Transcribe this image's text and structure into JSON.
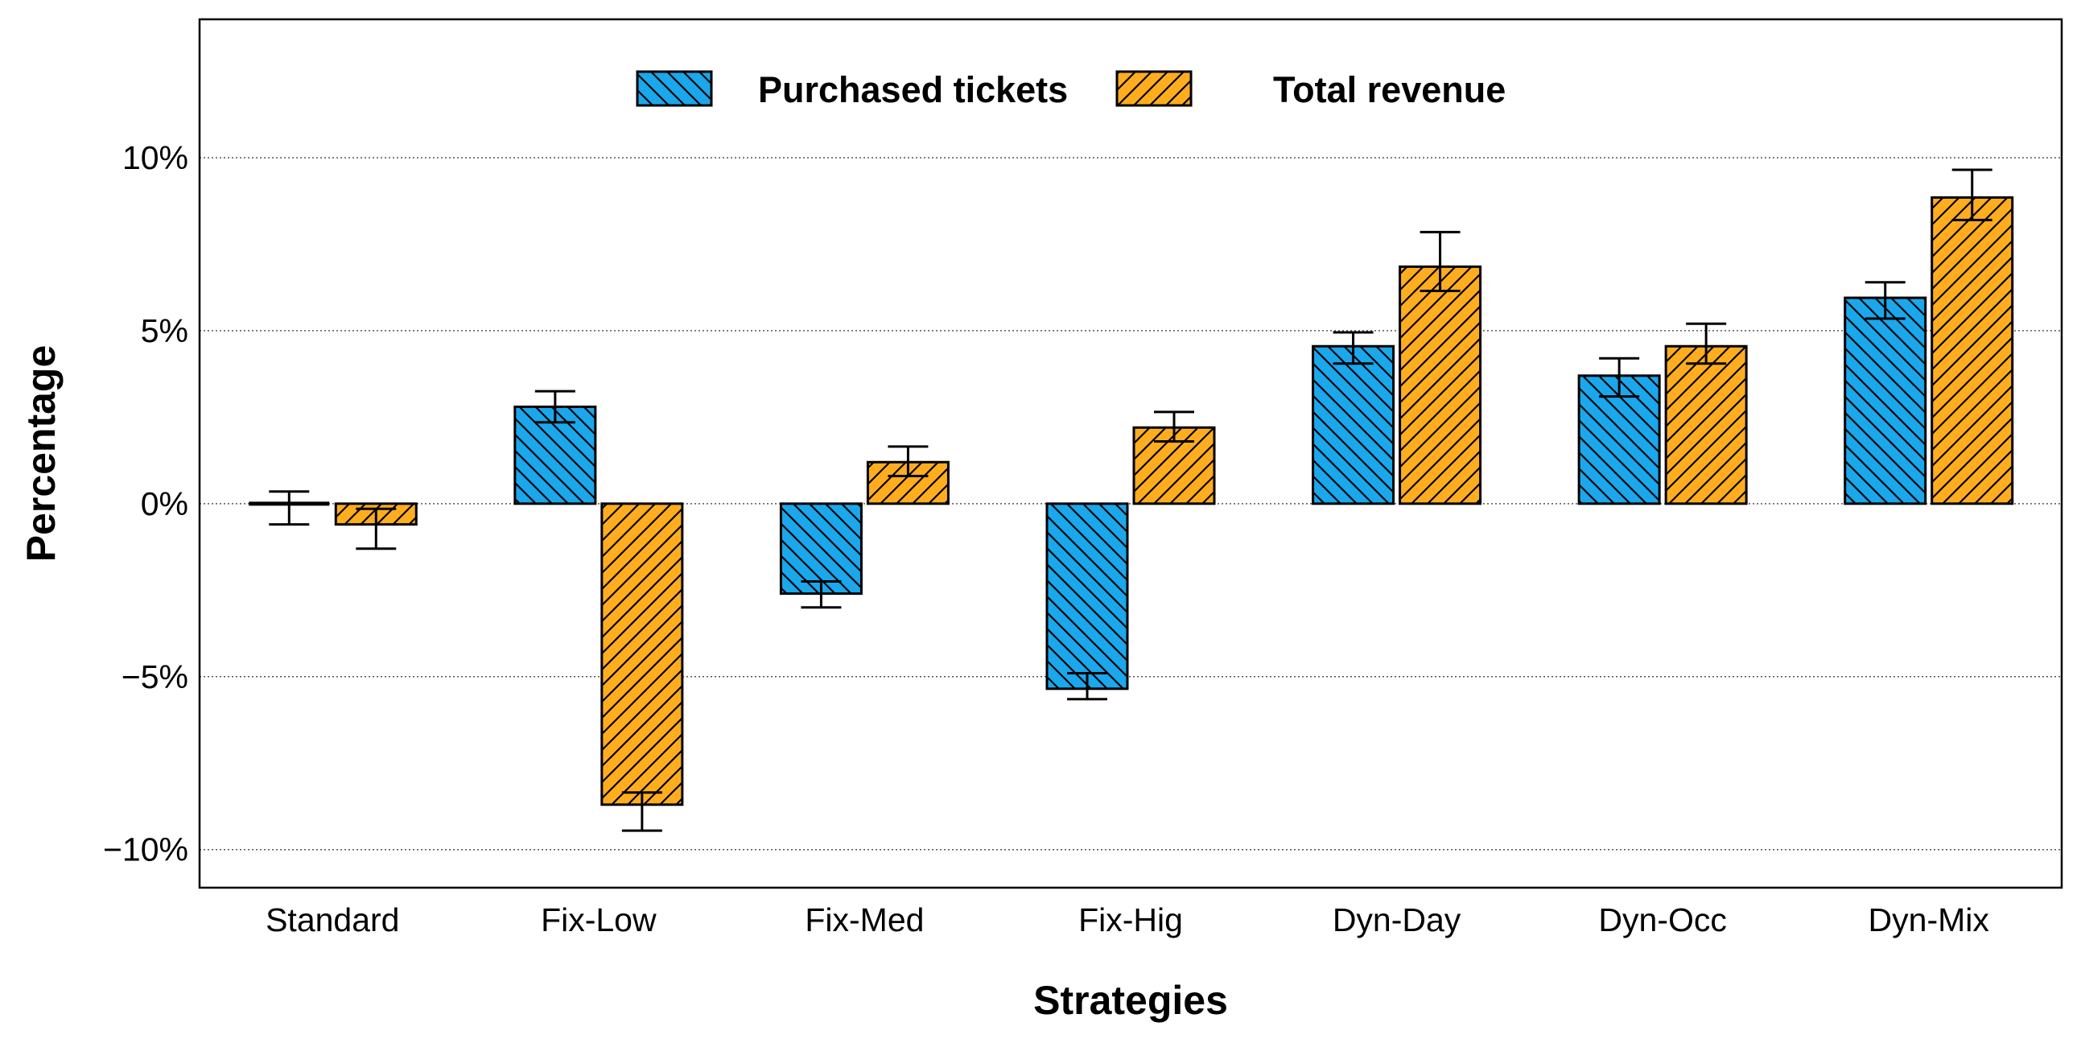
{
  "chart_data": {
    "type": "bar",
    "title": "",
    "xlabel": "Strategies",
    "ylabel": "Percentage",
    "categories": [
      "Standard",
      "Fix-Low",
      "Fix-Med",
      "Fix-Hig",
      "Dyn-Day",
      "Dyn-Occ",
      "Dyn-Mix"
    ],
    "series": [
      {
        "name": "Purchased tickets",
        "color": "#1aa7ec",
        "hatch": "backslash",
        "values": [
          -0.05,
          2.8,
          -2.6,
          -5.35,
          4.55,
          3.7,
          5.95
        ],
        "error_low": [
          -0.6,
          2.35,
          -3.0,
          -5.65,
          4.05,
          3.1,
          5.35
        ],
        "error_high": [
          0.35,
          3.25,
          -2.25,
          -4.9,
          4.95,
          4.2,
          6.4
        ]
      },
      {
        "name": "Total revenue",
        "color": "#ffad1f",
        "hatch": "slash",
        "values": [
          -0.6,
          -8.7,
          1.2,
          2.2,
          6.85,
          4.55,
          8.85
        ],
        "error_low": [
          -1.3,
          -9.45,
          0.8,
          1.8,
          6.15,
          4.05,
          8.2
        ],
        "error_high": [
          -0.15,
          -8.35,
          1.65,
          2.65,
          7.85,
          5.2,
          9.65
        ]
      }
    ],
    "ylim": [
      -11.1,
      14.0
    ],
    "yticks": [
      10,
      5,
      0,
      -5,
      -10
    ],
    "ytick_labels": [
      "10%",
      "5%",
      "0%",
      "−5%",
      "−10%"
    ],
    "grid": "horizontal dotted",
    "legend_position": "top-center"
  }
}
